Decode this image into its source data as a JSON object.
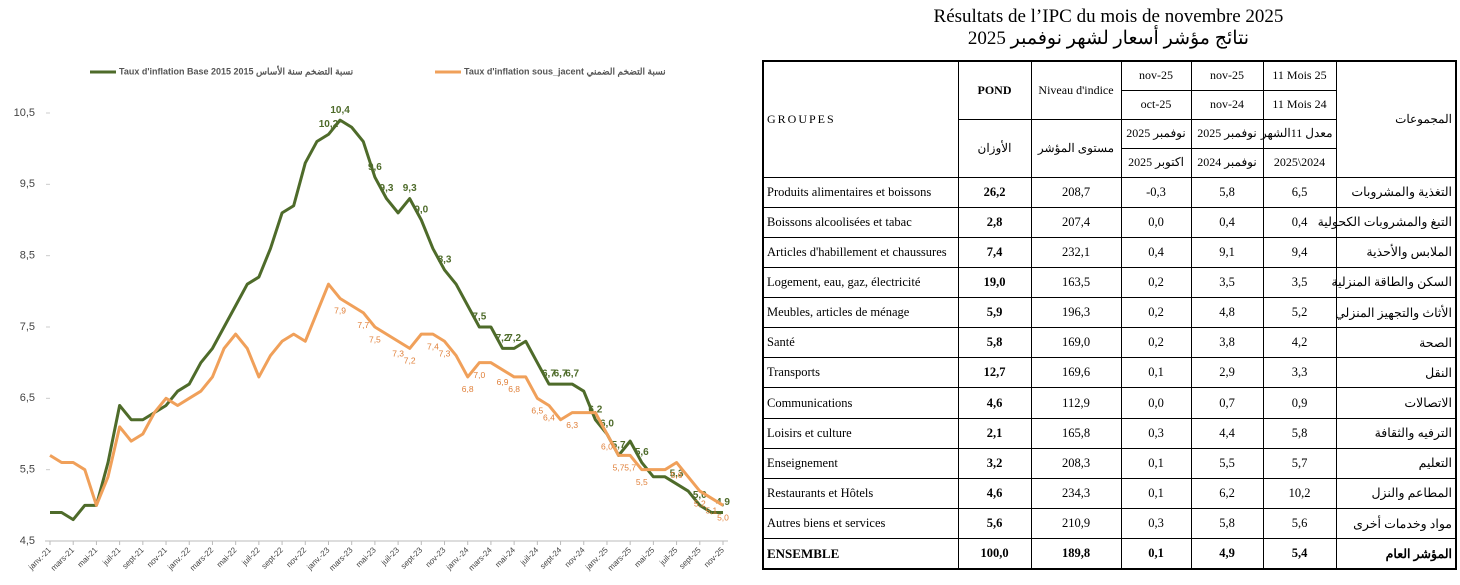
{
  "chart_data": {
    "type": "line",
    "categories": [
      "janv.-21",
      null,
      "mars-21",
      null,
      "mai-21",
      null,
      "juil-21",
      null,
      "sept-21",
      null,
      "nov-21",
      null,
      "janv.-22",
      null,
      "mars-22",
      null,
      "mai-22",
      null,
      "juil-22",
      null,
      "sept-22",
      null,
      "nov-22",
      null,
      "janv.-23",
      null,
      "mars-23",
      null,
      "mai-23",
      null,
      "juil-23",
      null,
      "sept-23",
      null,
      "nov-23",
      null,
      "janv.-24",
      null,
      "mars-24",
      null,
      "mai-24",
      null,
      "juil-24",
      null,
      "sept-24",
      null,
      "nov-24",
      null,
      "janv.-25",
      null,
      "mars-25",
      null,
      "mai-25",
      null,
      "juil-25",
      null,
      "sept-25",
      null,
      "nov-25"
    ],
    "series": [
      {
        "name": "Taux d'inflation Base 2015 نسبة التضخم سنة الأساس 2015",
        "color": "#4e6b2a",
        "values": [
          4.9,
          4.9,
          4.8,
          5.0,
          5.0,
          5.6,
          6.4,
          6.2,
          6.2,
          6.3,
          6.4,
          6.6,
          6.7,
          7.0,
          7.2,
          7.5,
          7.8,
          8.1,
          8.2,
          8.6,
          9.1,
          9.2,
          9.8,
          10.1,
          10.2,
          10.4,
          10.3,
          10.1,
          9.6,
          9.3,
          9.1,
          9.3,
          9.0,
          8.6,
          8.3,
          8.1,
          7.8,
          7.5,
          7.5,
          7.2,
          7.2,
          7.3,
          7.0,
          6.7,
          6.7,
          6.7,
          6.6,
          6.2,
          6.0,
          5.7,
          5.9,
          5.6,
          5.4,
          5.4,
          5.3,
          5.2,
          5.0,
          4.9,
          4.9
        ],
        "value_labels": [
          null,
          null,
          null,
          null,
          null,
          null,
          null,
          null,
          null,
          null,
          null,
          null,
          null,
          null,
          null,
          null,
          null,
          null,
          null,
          null,
          null,
          null,
          null,
          null,
          "10,2",
          "10,4",
          null,
          null,
          "9,6",
          "9,3",
          null,
          "9,3",
          "9,0",
          null,
          "8,3",
          null,
          null,
          "7,5",
          null,
          "7,2",
          "7,2",
          null,
          null,
          "6,7",
          "6,7",
          "6,7",
          null,
          "6,2",
          "6,0",
          "5,7",
          null,
          "5,6",
          null,
          null,
          "5,3",
          null,
          "5,0",
          null,
          "4,9"
        ]
      },
      {
        "name": "Taux d'inflation sous_jacent نسبة التضخم الضمني",
        "color": "#f0a05a",
        "values": [
          5.7,
          5.6,
          5.6,
          5.5,
          5.0,
          5.4,
          6.1,
          5.9,
          6.0,
          6.3,
          6.5,
          6.4,
          6.5,
          6.6,
          6.8,
          7.2,
          7.4,
          7.2,
          6.8,
          7.1,
          7.3,
          7.4,
          7.3,
          7.7,
          8.1,
          7.9,
          7.8,
          7.7,
          7.5,
          7.4,
          7.3,
          7.2,
          7.4,
          7.4,
          7.3,
          7.1,
          6.8,
          7.0,
          7.0,
          6.9,
          6.8,
          6.8,
          6.5,
          6.4,
          6.2,
          6.3,
          6.3,
          6.3,
          6.0,
          5.7,
          5.7,
          5.5,
          5.5,
          5.5,
          5.6,
          5.4,
          5.2,
          5.1,
          5.0
        ],
        "value_labels": [
          null,
          null,
          null,
          null,
          null,
          null,
          null,
          null,
          null,
          null,
          null,
          null,
          null,
          null,
          null,
          null,
          null,
          null,
          null,
          null,
          null,
          null,
          null,
          null,
          null,
          "7,9",
          null,
          "7,7",
          "7,5",
          null,
          "7,3",
          "7,2",
          null,
          "7,4",
          "7,3",
          null,
          "6,8",
          "7,0",
          null,
          "6,9",
          "6,8",
          null,
          "6,5",
          "6,4",
          null,
          "6,3",
          null,
          null,
          "6,0",
          "5,7",
          "5,7",
          "5,5",
          null,
          null,
          "5,6",
          null,
          "5,2",
          "5,1",
          "5,0"
        ]
      }
    ],
    "ylim": [
      4.5,
      10.5
    ],
    "yticks": [
      {
        "value": 4.5,
        "label": "4,5"
      },
      {
        "value": 5.5,
        "label": "5,5"
      },
      {
        "value": 6.5,
        "label": "6,5"
      },
      {
        "value": 7.5,
        "label": "7,5"
      },
      {
        "value": 8.5,
        "label": "8,5"
      },
      {
        "value": 9.5,
        "label": "9,5"
      },
      {
        "value": 10.5,
        "label": "10,5"
      }
    ],
    "grid": false,
    "legend": "top"
  },
  "table": {
    "title": "Résultats de l’IPC du mois de novembre 2025",
    "subtitle": "نتائج مؤشر أسعار لشهر نوفمبر 2025",
    "header": {
      "groupes": "GROUPES",
      "pond": [
        "POND",
        "الأوزان"
      ],
      "niveau": [
        "Niveau d'indice",
        "مستوى المؤشر"
      ],
      "var1": [
        "nov-25",
        "oct-25",
        "نوفمبر 2025",
        "اكتوبر 2025"
      ],
      "var2": [
        "nov-25",
        "nov-24",
        "نوفمبر 2025",
        "نوفمبر 2024"
      ],
      "var3": [
        "11 Mois 25",
        "11 Mois 24",
        "معدل 11الشهر",
        "2025\\2024"
      ],
      "groupes_ar": "المجموعات"
    },
    "rows": [
      [
        "Produits alimentaires et boissons",
        "26,2",
        "208,7",
        "-0,3",
        "5,8",
        "6,5",
        "التغذية والمشروبات"
      ],
      [
        "Boissons alcoolisées et tabac",
        "2,8",
        "207,4",
        "0,0",
        "0,4",
        "0,4",
        "التبغ والمشروبات الكحولية"
      ],
      [
        "Articles d'habillement et chaussures",
        "7,4",
        "232,1",
        "0,4",
        "9,1",
        "9,4",
        "الملابس والأحذية"
      ],
      [
        "Logement, eau, gaz, électricité",
        "19,0",
        "163,5",
        "0,2",
        "3,5",
        "3,5",
        "السكن والطاقة المنزلية"
      ],
      [
        "Meubles, articles de ménage",
        "5,9",
        "196,3",
        "0,2",
        "4,8",
        "5,2",
        "الأثاث والتجهيز المنزلي"
      ],
      [
        "Santé",
        "5,8",
        "169,0",
        "0,2",
        "3,8",
        "4,2",
        "الصحة"
      ],
      [
        "Transports",
        "12,7",
        "169,6",
        "0,1",
        "2,9",
        "3,3",
        "النقل"
      ],
      [
        "Communications",
        "4,6",
        "112,9",
        "0,0",
        "0,7",
        "0,9",
        "الاتصالات"
      ],
      [
        "Loisirs et culture",
        "2,1",
        "165,8",
        "0,3",
        "4,4",
        "5,8",
        "الترفيه والثقافة"
      ],
      [
        "Enseignement",
        "3,2",
        "208,3",
        "0,1",
        "5,5",
        "5,7",
        "التعليم"
      ],
      [
        "Restaurants et Hôtels",
        "4,6",
        "234,3",
        "0,1",
        "6,2",
        "10,2",
        "المطاعم والنزل"
      ],
      [
        "Autres biens et services",
        "5,6",
        "210,9",
        "0,3",
        "5,8",
        "5,6",
        "مواد وخدمات أخرى"
      ],
      [
        "ENSEMBLE",
        "100,0",
        "189,8",
        "0,1",
        "4,9",
        "5,4",
        "المؤشر العام"
      ]
    ]
  }
}
